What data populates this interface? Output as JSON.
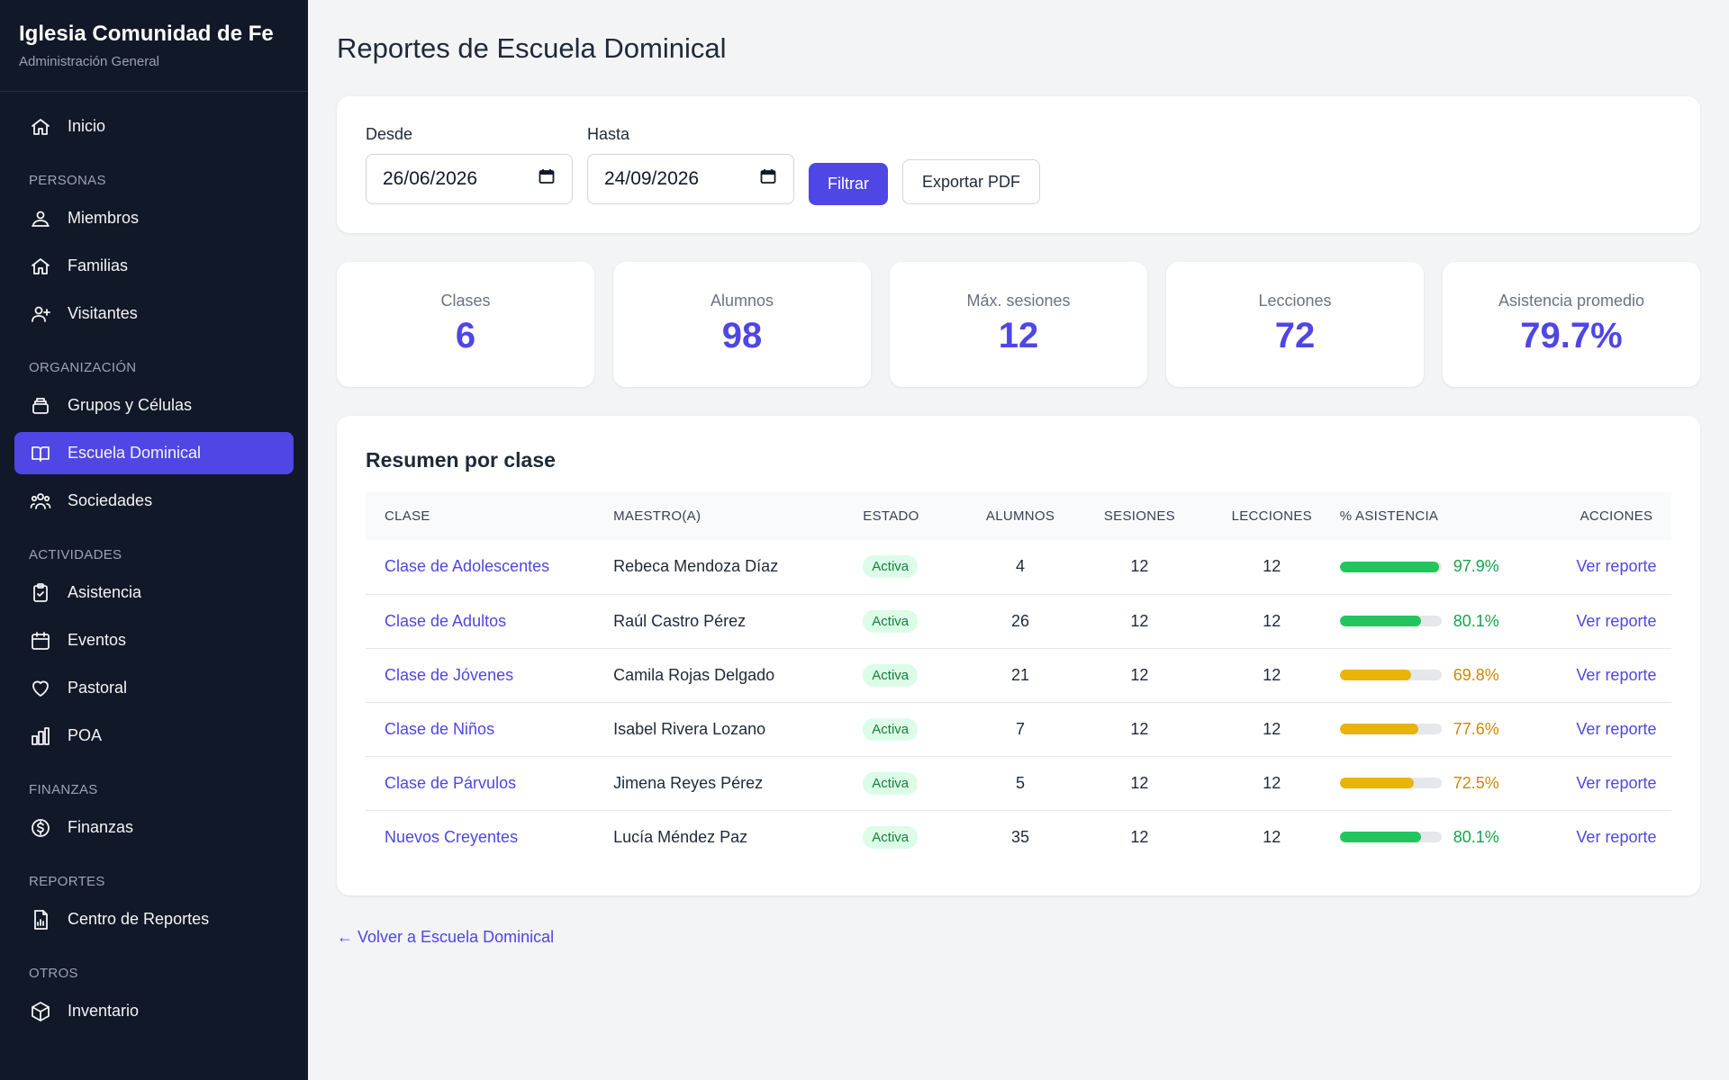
{
  "brand": {
    "title": "Iglesia Comunidad de Fe",
    "subtitle": "Administración General"
  },
  "sidebar": {
    "home": {
      "label": "Inicio",
      "icon": "home-icon"
    },
    "sections": [
      {
        "title": "PERSONAS",
        "items": [
          {
            "label": "Miembros",
            "icon": "users-icon"
          },
          {
            "label": "Familias",
            "icon": "home-icon"
          },
          {
            "label": "Visitantes",
            "icon": "user-plus-icon"
          }
        ]
      },
      {
        "title": "ORGANIZACIÓN",
        "items": [
          {
            "label": "Grupos y Células",
            "icon": "layers-icon"
          },
          {
            "label": "Escuela Dominical",
            "icon": "book-icon",
            "active": true
          },
          {
            "label": "Sociedades",
            "icon": "group-icon"
          }
        ]
      },
      {
        "title": "ACTIVIDADES",
        "items": [
          {
            "label": "Asistencia",
            "icon": "clipboard-check-icon"
          },
          {
            "label": "Eventos",
            "icon": "calendar-icon"
          },
          {
            "label": "Pastoral",
            "icon": "heart-icon"
          },
          {
            "label": "POA",
            "icon": "bar-chart-icon"
          }
        ]
      },
      {
        "title": "FINANZAS",
        "items": [
          {
            "label": "Finanzas",
            "icon": "dollar-icon"
          }
        ]
      },
      {
        "title": "REPORTES",
        "items": [
          {
            "label": "Centro de Reportes",
            "icon": "report-icon"
          }
        ]
      },
      {
        "title": "OTROS",
        "items": [
          {
            "label": "Inventario",
            "icon": "box-icon"
          }
        ]
      }
    ]
  },
  "page": {
    "title": "Reportes de Escuela Dominical"
  },
  "filters": {
    "from_label": "Desde",
    "from_value": "26/06/2026",
    "to_label": "Hasta",
    "to_value": "24/09/2026",
    "filter_button": "Filtrar",
    "export_button": "Exportar PDF"
  },
  "stats": [
    {
      "label": "Clases",
      "value": "6"
    },
    {
      "label": "Alumnos",
      "value": "98"
    },
    {
      "label": "Máx. sesiones",
      "value": "12"
    },
    {
      "label": "Lecciones",
      "value": "72"
    },
    {
      "label": "Asistencia promedio",
      "value": "79.7%"
    }
  ],
  "summary": {
    "title": "Resumen por clase",
    "columns": [
      "CLASE",
      "MAESTRO(A)",
      "ESTADO",
      "ALUMNOS",
      "SESIONES",
      "LECCIONES",
      "% ASISTENCIA",
      "ACCIONES"
    ],
    "rows": [
      {
        "clase": "Clase de Adolescentes",
        "maestro": "Rebeca Mendoza Díaz",
        "estado": "Activa",
        "alumnos": "4",
        "sesiones": "12",
        "lecciones": "12",
        "asistencia": "97.9%",
        "asistencia_value": 97.9,
        "level": "good",
        "accion": "Ver reporte"
      },
      {
        "clase": "Clase de Adultos",
        "maestro": "Raúl Castro Pérez",
        "estado": "Activa",
        "alumnos": "26",
        "sesiones": "12",
        "lecciones": "12",
        "asistencia": "80.1%",
        "asistencia_value": 80.1,
        "level": "good",
        "accion": "Ver reporte"
      },
      {
        "clase": "Clase de Jóvenes",
        "maestro": "Camila Rojas Delgado",
        "estado": "Activa",
        "alumnos": "21",
        "sesiones": "12",
        "lecciones": "12",
        "asistencia": "69.8%",
        "asistencia_value": 69.8,
        "level": "warn",
        "accion": "Ver reporte"
      },
      {
        "clase": "Clase de Niños",
        "maestro": "Isabel Rivera Lozano",
        "estado": "Activa",
        "alumnos": "7",
        "sesiones": "12",
        "lecciones": "12",
        "asistencia": "77.6%",
        "asistencia_value": 77.6,
        "level": "warn",
        "accion": "Ver reporte"
      },
      {
        "clase": "Clase de Párvulos",
        "maestro": "Jimena Reyes Pérez",
        "estado": "Activa",
        "alumnos": "5",
        "sesiones": "12",
        "lecciones": "12",
        "asistencia": "72.5%",
        "asistencia_value": 72.5,
        "level": "warn",
        "accion": "Ver reporte"
      },
      {
        "clase": "Nuevos Creyentes",
        "maestro": "Lucía Méndez Paz",
        "estado": "Activa",
        "alumnos": "35",
        "sesiones": "12",
        "lecciones": "12",
        "asistencia": "80.1%",
        "asistencia_value": 80.1,
        "level": "good",
        "accion": "Ver reporte"
      }
    ]
  },
  "back_link": "← Volver a Escuela Dominical",
  "colors": {
    "accent": "#4f46e5",
    "good": "#22c55e",
    "good_text": "#16a34a",
    "warn": "#eab308",
    "warn_text": "#ca8a04",
    "sidebar_bg": "#111827"
  }
}
